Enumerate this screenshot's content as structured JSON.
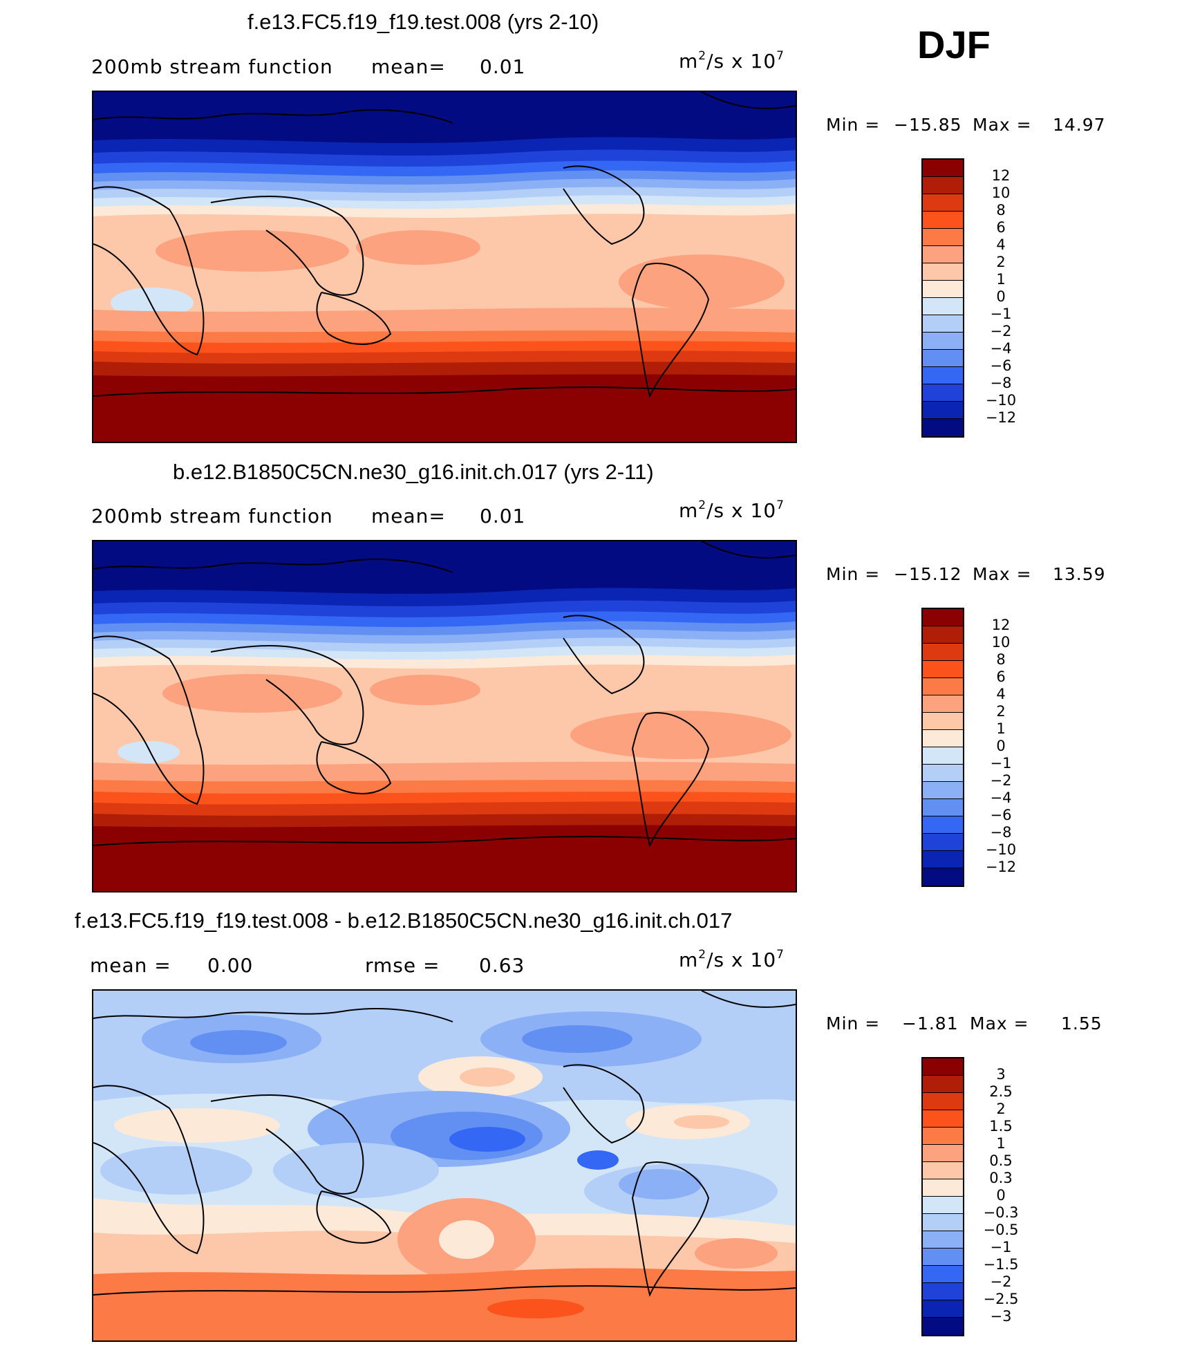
{
  "season": "DJF",
  "panels": [
    {
      "title": "f.e13.FC5.f19_f19.test.008 (yrs 2-10)",
      "subtitle_var": "200mb stream function",
      "subtitle_stat1_label": "mean=",
      "subtitle_stat1_value": "0.01",
      "units_base": "m",
      "units_exp1": "2",
      "units_mid": "/s x 10",
      "units_exp2": "7",
      "min_label": "Min =",
      "min_value": "−15.85",
      "max_label": "Max =",
      "max_value": "14.97",
      "colorbar_labels": [
        "12",
        "10",
        "8",
        "6",
        "4",
        "2",
        "1",
        "0",
        "−1",
        "−2",
        "−4",
        "−6",
        "−8",
        "−10",
        "−12"
      ]
    },
    {
      "title": "b.e12.B1850C5CN.ne30_g16.init.ch.017 (yrs 2-11)",
      "subtitle_var": "200mb stream function",
      "subtitle_stat1_label": "mean=",
      "subtitle_stat1_value": "0.01",
      "units_base": "m",
      "units_exp1": "2",
      "units_mid": "/s x 10",
      "units_exp2": "7",
      "min_label": "Min =",
      "min_value": "−15.12",
      "max_label": "Max =",
      "max_value": "13.59",
      "colorbar_labels": [
        "12",
        "10",
        "8",
        "6",
        "4",
        "2",
        "1",
        "0",
        "−1",
        "−2",
        "−4",
        "−6",
        "−8",
        "−10",
        "−12"
      ]
    },
    {
      "title": "f.e13.FC5.f19_f19.test.008 - b.e12.B1850C5CN.ne30_g16.init.ch.017",
      "subtitle_stat1_label": "mean =",
      "subtitle_stat1_value": "0.00",
      "subtitle_stat2_label": "rmse =",
      "subtitle_stat2_value": "0.63",
      "units_base": "m",
      "units_exp1": "2",
      "units_mid": "/s x 10",
      "units_exp2": "7",
      "min_label": "Min =",
      "min_value": "−1.81",
      "max_label": "Max =",
      "max_value": "1.55",
      "colorbar_labels": [
        "3",
        "2.5",
        "2",
        "1.5",
        "1",
        "0.5",
        "0.3",
        "0",
        "−0.3",
        "−0.5",
        "−1",
        "−1.5",
        "−2",
        "−2.5",
        "−3"
      ]
    }
  ],
  "colors": {
    "abs_scale": [
      "#8b0000",
      "#b01e08",
      "#de3a12",
      "#fc521c",
      "#fb7a45",
      "#fca27f",
      "#fdc8aa",
      "#fde9d8",
      "#d3e6f8",
      "#b3cff8",
      "#8cb0f6",
      "#6190f2",
      "#3367f4",
      "#1f43d8",
      "#0a24b4",
      "#020b82"
    ],
    "diff_scale": [
      "#8b0000",
      "#b01e08",
      "#de3a12",
      "#fc521c",
      "#fb7a45",
      "#fca27f",
      "#fdc8aa",
      "#fde9d8",
      "#fbf7f0",
      "#d3e6f8",
      "#b3cff8",
      "#8cb0f6",
      "#6190f2",
      "#3367f4",
      "#1f43d8",
      "#0a24b4",
      "#020b82"
    ]
  }
}
